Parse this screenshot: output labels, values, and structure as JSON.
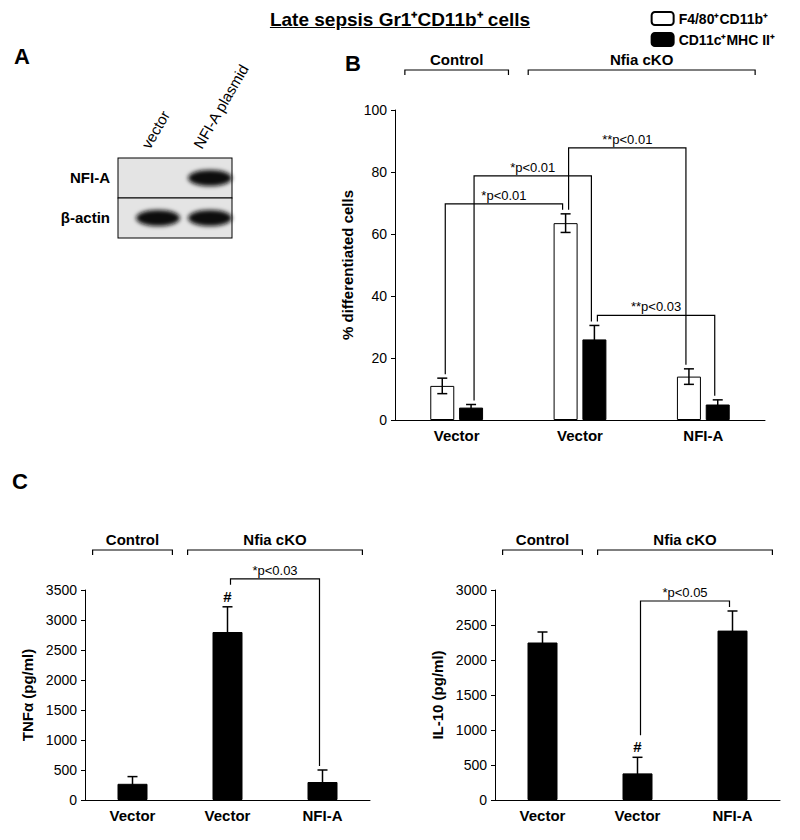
{
  "title": "Late sepsis Gr1⁺CD11b⁺ cells",
  "blot": {
    "panel": "A",
    "lanes": [
      "vector",
      "NFI-A plasmid"
    ],
    "rows": [
      {
        "label": "NFI-A",
        "band": [
          false,
          true
        ]
      },
      {
        "label": "β-actin",
        "band": [
          true,
          true
        ]
      }
    ]
  },
  "chart_data": [
    {
      "type": "bar",
      "panel": "B",
      "categories": [
        "Vector",
        "Vector",
        "NFI-A"
      ],
      "groups": [
        {
          "label": "Control",
          "from": 0,
          "to": 0
        },
        {
          "label": "Nfia cKO",
          "from": 1,
          "to": 2
        }
      ],
      "series": [
        {
          "name": "F4/80⁺CD11b⁺",
          "color": "#ffffff",
          "values": [
            11,
            63.5,
            14
          ],
          "errors": [
            2.5,
            3,
            2.5
          ]
        },
        {
          "name": "CD11c⁺MHC II⁺",
          "color": "#000000",
          "values": [
            4,
            26,
            5
          ],
          "errors": [
            1,
            4.5,
            1.5
          ]
        }
      ],
      "ylabel": "% differentiated cells",
      "ylim": [
        0,
        100
      ],
      "yticks": [
        0,
        20,
        40,
        60,
        80,
        100
      ],
      "grid": false,
      "legend": "top-right",
      "comparisons": [
        {
          "from": {
            "category": 0,
            "series": 0
          },
          "to": {
            "category": 1,
            "series": 0
          },
          "label": "*p<0.01"
        },
        {
          "from": {
            "category": 0,
            "series": 1
          },
          "to": {
            "category": 1,
            "series": 1
          },
          "label": "*p<0.01"
        },
        {
          "from": {
            "category": 1,
            "series": 1
          },
          "to": {
            "category": 2,
            "series": 1
          },
          "label": "**p<0.03"
        },
        {
          "from": {
            "category": 1,
            "series": 0
          },
          "to": {
            "category": 2,
            "series": 0
          },
          "label": "**p<0.01"
        }
      ]
    },
    {
      "type": "bar",
      "panel": "C",
      "categories": [
        "Vector",
        "Vector",
        "NFI-A"
      ],
      "groups": [
        {
          "label": "Control",
          "from": 0,
          "to": 0
        },
        {
          "label": "Nfia cKO",
          "from": 1,
          "to": 2
        }
      ],
      "series": [
        {
          "color": "#000000",
          "values": [
            270,
            2800,
            300
          ],
          "errors": [
            120,
            420,
            200
          ],
          "marks": [
            null,
            "#",
            null
          ]
        }
      ],
      "ylabel": "TNFα (pg/ml)",
      "ylim": [
        0,
        3500
      ],
      "yticks": [
        0,
        500,
        1000,
        1500,
        2000,
        2500,
        3000,
        3500
      ],
      "grid": false,
      "comparisons": [
        {
          "from": {
            "category": 1,
            "series": 0
          },
          "to": {
            "category": 2,
            "series": 0
          },
          "label": "*p<0.03"
        }
      ]
    },
    {
      "type": "bar",
      "categories": [
        "Vector",
        "Vector",
        "NFI-A"
      ],
      "groups": [
        {
          "label": "Control",
          "from": 0,
          "to": 0
        },
        {
          "label": "Nfia cKO",
          "from": 1,
          "to": 2
        }
      ],
      "series": [
        {
          "color": "#000000",
          "values": [
            2250,
            380,
            2420
          ],
          "errors": [
            150,
            230,
            280
          ],
          "marks": [
            null,
            "#",
            null
          ]
        }
      ],
      "ylabel": "IL-10 (pg/ml)",
      "ylim": [
        0,
        3000
      ],
      "yticks": [
        0,
        500,
        1000,
        1500,
        2000,
        2500,
        3000
      ],
      "grid": false,
      "comparisons": [
        {
          "from": {
            "category": 1,
            "series": 0
          },
          "to": {
            "category": 2,
            "series": 0
          },
          "label": "*p<0.05"
        }
      ]
    }
  ]
}
